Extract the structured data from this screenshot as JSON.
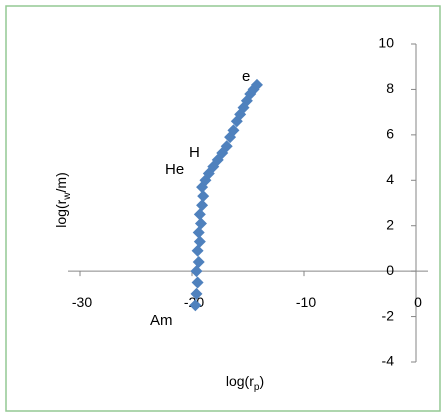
{
  "chart_data": {
    "type": "scatter",
    "xlabel": [
      "log(r",
      "p",
      ")"
    ],
    "ylabel": [
      "log(r",
      "w",
      "/m)"
    ],
    "annotations": [
      "e",
      "H",
      "He",
      "Am"
    ],
    "x": [
      -19.7,
      -19.6,
      -19.5,
      -19.6,
      -19.4,
      -19.5,
      -19.3,
      -19.4,
      -19.2,
      -19.3,
      -19.1,
      -19.0,
      -19.1,
      -18.8,
      -18.5,
      -18.1,
      -17.7,
      -17.3,
      -16.9,
      -16.6,
      -16.3,
      -16.0,
      -15.7,
      -15.4,
      -15.1,
      -14.8,
      -14.5,
      -14.2
    ],
    "y": [
      -1.5,
      -1.0,
      -0.5,
      0,
      0.4,
      0.9,
      1.3,
      1.7,
      2.1,
      2.5,
      2.9,
      3.3,
      3.7,
      4.0,
      4.3,
      4.6,
      4.9,
      5.2,
      5.5,
      5.9,
      6.2,
      6.6,
      6.9,
      7.2,
      7.5,
      7.8,
      8.0,
      8.2
    ],
    "color": "#4f81bd",
    "xlim": [
      -30,
      0
    ],
    "xticks": [
      -30,
      -20,
      -10,
      0
    ],
    "ylim": [
      -4,
      10
    ],
    "yticks": [
      -4,
      -2,
      0,
      2,
      4,
      6,
      8,
      10
    ]
  }
}
